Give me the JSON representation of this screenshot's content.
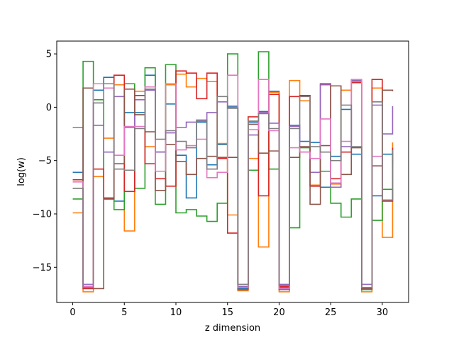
{
  "chart_data": {
    "type": "line",
    "step": "post",
    "xlabel": "z dimension",
    "ylabel": "log(w)",
    "xlim": [
      -1.55,
      32.55
    ],
    "ylim": [
      -18.3,
      6.2
    ],
    "xticks": [
      0,
      5,
      10,
      15,
      20,
      25,
      30
    ],
    "yticks": [
      5,
      0,
      -5,
      -10,
      -15
    ],
    "ytick_labels": [
      "5",
      "0",
      "−5",
      "−10",
      "−15"
    ],
    "grid": false,
    "series": [
      {
        "color": "#1f77b4",
        "values": [
          -6.1,
          -16.8,
          1.6,
          2.8,
          -8.8,
          -0.5,
          -0.5,
          3.0,
          -4.2,
          0.3,
          -4.5,
          -8.5,
          -1.4,
          -5.4,
          -3.5,
          0.1,
          -17.0,
          -1.4,
          -0.4,
          1.5,
          -16.9,
          -1.7,
          -3.2,
          -3.3,
          -7.5,
          -4.6,
          -0.2,
          -4.4,
          -16.9,
          -8.3,
          -4.4,
          -5.4
        ]
      },
      {
        "color": "#ff7f0e",
        "values": [
          -9.9,
          -17.3,
          -6.5,
          -2.9,
          2.1,
          -11.6,
          1.5,
          -3.7,
          -4.2,
          2.1,
          3.1,
          1.9,
          2.7,
          2.4,
          -3.4,
          -10.1,
          -17.2,
          -4.8,
          -13.1,
          1.4,
          -17.3,
          2.5,
          0.6,
          -7.3,
          2.2,
          -7.2,
          1.6,
          2.4,
          -17.3,
          1.8,
          -12.2,
          -3.3
        ]
      },
      {
        "color": "#2ca02c",
        "values": [
          -8.6,
          4.3,
          0.7,
          -8.6,
          -9.6,
          2.2,
          -7.6,
          3.7,
          -9.1,
          4.0,
          -9.9,
          -9.6,
          -10.2,
          -10.7,
          -9.0,
          5.0,
          -16.9,
          -5.9,
          5.2,
          -5.8,
          -17.0,
          -11.3,
          -3.8,
          -6.1,
          -6.0,
          -9.0,
          -10.3,
          -8.6,
          -17.1,
          -10.6,
          -7.7,
          -8.6
        ]
      },
      {
        "color": "#d62728",
        "values": [
          -6.8,
          -17.0,
          -5.8,
          -8.5,
          3.0,
          -7.9,
          1.1,
          -5.3,
          -6.7,
          -7.4,
          3.4,
          3.2,
          0.8,
          3.2,
          -4.8,
          -11.8,
          -16.9,
          -0.9,
          -8.3,
          1.2,
          -16.8,
          1.0,
          1.1,
          -7.4,
          2.2,
          -6.7,
          -4.2,
          2.3,
          -17.0,
          2.6,
          -8.8,
          -3.8
        ]
      },
      {
        "color": "#9467bd",
        "values": [
          -1.9,
          -16.6,
          -1.7,
          -4.2,
          1.0,
          -1.9,
          0.7,
          1.6,
          -4.2,
          -2.4,
          -1.9,
          -1.4,
          -1.3,
          -0.5,
          0.5,
          0.0,
          -16.8,
          -2.6,
          -0.5,
          -1.5,
          -16.6,
          -1.8,
          -4.2,
          -6.1,
          2.1,
          -7.5,
          -3.7,
          2.5,
          -16.6,
          0.2,
          -2.5,
          0.1
        ]
      },
      {
        "color": "#8c564b",
        "values": [
          -7.6,
          1.8,
          -17.0,
          -8.6,
          -5.3,
          1.7,
          -0.7,
          -2.3,
          -7.8,
          -3.5,
          -5.1,
          -6.3,
          -4.8,
          -4.6,
          -4.7,
          -4.7,
          -17.1,
          -1.6,
          -4.3,
          -4.1,
          -17.1,
          -4.7,
          -3.7,
          -9.1,
          -3.6,
          2.0,
          -6.3,
          -3.8,
          -17.0,
          -5.5,
          1.6,
          1.5
        ]
      },
      {
        "color": "#e377c2",
        "values": [
          -7.0,
          -16.8,
          2.2,
          1.8,
          -4.5,
          -1.8,
          -1.8,
          1.9,
          -6.0,
          2.2,
          -4.0,
          -3.6,
          -3.0,
          -6.6,
          -6.1,
          3.0,
          -16.9,
          -2.1,
          2.6,
          -2.2,
          -17.0,
          -3.8,
          -4.2,
          -4.8,
          -1.1,
          -7.1,
          -3.2,
          2.6,
          -16.9,
          -4.6,
          -8.7,
          -5.7
        ]
      },
      {
        "color": "#7f7f7f",
        "values": [
          -7.6,
          -16.9,
          0.4,
          2.2,
          -5.8,
          -5.9,
          -2.0,
          1.7,
          -3.0,
          -2.2,
          -3.2,
          -3.8,
          -1.2,
          -5.8,
          1.0,
          -0.1,
          -16.6,
          -1.3,
          -0.6,
          -2.0,
          -16.7,
          -2.0,
          1.0,
          -3.7,
          -4.2,
          -5.0,
          0.2,
          -3.7,
          -16.9,
          0.5,
          -8.7,
          -4.0
        ]
      }
    ]
  }
}
